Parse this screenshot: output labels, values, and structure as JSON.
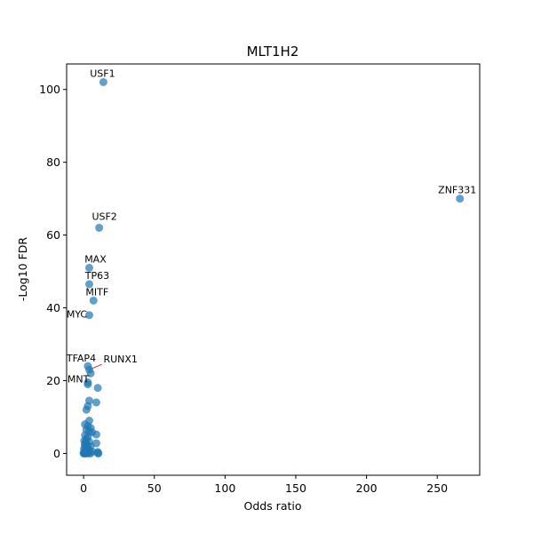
{
  "chart_data": {
    "type": "scatter",
    "title": "MLT1H2",
    "xlabel": "Odds ratio",
    "ylabel": "-Log10 FDR",
    "xlim": [
      -12,
      280
    ],
    "ylim": [
      -6,
      107
    ],
    "xticks": [
      0,
      50,
      100,
      150,
      200,
      250
    ],
    "yticks": [
      0,
      20,
      40,
      60,
      80,
      100
    ],
    "grid": false,
    "point_color": "#1f77b4",
    "annotation_line_color": "#d62728",
    "labeled_points": [
      {
        "label": "USF1",
        "x": 14,
        "y": 102
      },
      {
        "label": "ZNF331",
        "x": 266,
        "y": 70
      },
      {
        "label": "USF2",
        "x": 11,
        "y": 62
      },
      {
        "label": "MAX",
        "x": 4,
        "y": 51
      },
      {
        "label": "TP63",
        "x": 4,
        "y": 46.5
      },
      {
        "label": "MITF",
        "x": 7,
        "y": 42
      },
      {
        "label": "MYC",
        "x": 4,
        "y": 38
      },
      {
        "label": "RUNX1",
        "x": 4,
        "y": 23
      },
      {
        "label": "TFAP4",
        "x": 3,
        "y": 24
      },
      {
        "label": "MNT",
        "x": 3,
        "y": 19.5
      }
    ],
    "other_points": [
      {
        "x": 5,
        "y": 22
      },
      {
        "x": 3,
        "y": 19
      },
      {
        "x": 10,
        "y": 18
      },
      {
        "x": 4,
        "y": 14.5
      },
      {
        "x": 9,
        "y": 14
      },
      {
        "x": 3,
        "y": 13
      },
      {
        "x": 2,
        "y": 12
      },
      {
        "x": 4,
        "y": 9
      },
      {
        "x": 1,
        "y": 8
      },
      {
        "x": 3,
        "y": 7.5
      },
      {
        "x": 5,
        "y": 7
      },
      {
        "x": 2,
        "y": 6.5
      },
      {
        "x": 4,
        "y": 6
      },
      {
        "x": 6,
        "y": 5.8
      },
      {
        "x": 9,
        "y": 5.2
      },
      {
        "x": 1,
        "y": 5
      },
      {
        "x": 3,
        "y": 4.5
      },
      {
        "x": 2,
        "y": 4
      },
      {
        "x": 0.5,
        "y": 3.5
      },
      {
        "x": 4,
        "y": 3.2
      },
      {
        "x": 1.5,
        "y": 3
      },
      {
        "x": 9,
        "y": 2.8
      },
      {
        "x": 0.8,
        "y": 2.5
      },
      {
        "x": 2.5,
        "y": 2.2
      },
      {
        "x": 5,
        "y": 2
      },
      {
        "x": 1,
        "y": 1.8
      },
      {
        "x": 3,
        "y": 1.5
      },
      {
        "x": 0.3,
        "y": 1.2
      },
      {
        "x": 2,
        "y": 1
      },
      {
        "x": 4,
        "y": 0.8
      },
      {
        "x": 1.2,
        "y": 0.6
      },
      {
        "x": 6,
        "y": 0.5
      },
      {
        "x": 10,
        "y": 0.4
      },
      {
        "x": 0.5,
        "y": 0.3
      },
      {
        "x": 2.8,
        "y": 0.2
      },
      {
        "x": 10,
        "y": 0.1
      },
      {
        "x": 0.2,
        "y": 0.1
      },
      {
        "x": 1.5,
        "y": 0.05
      },
      {
        "x": 3.5,
        "y": 0.05
      },
      {
        "x": 5,
        "y": 0
      },
      {
        "x": 0.8,
        "y": 0
      },
      {
        "x": 2.2,
        "y": 0
      },
      {
        "x": 0,
        "y": 0
      },
      {
        "x": 10.5,
        "y": 0
      }
    ]
  }
}
